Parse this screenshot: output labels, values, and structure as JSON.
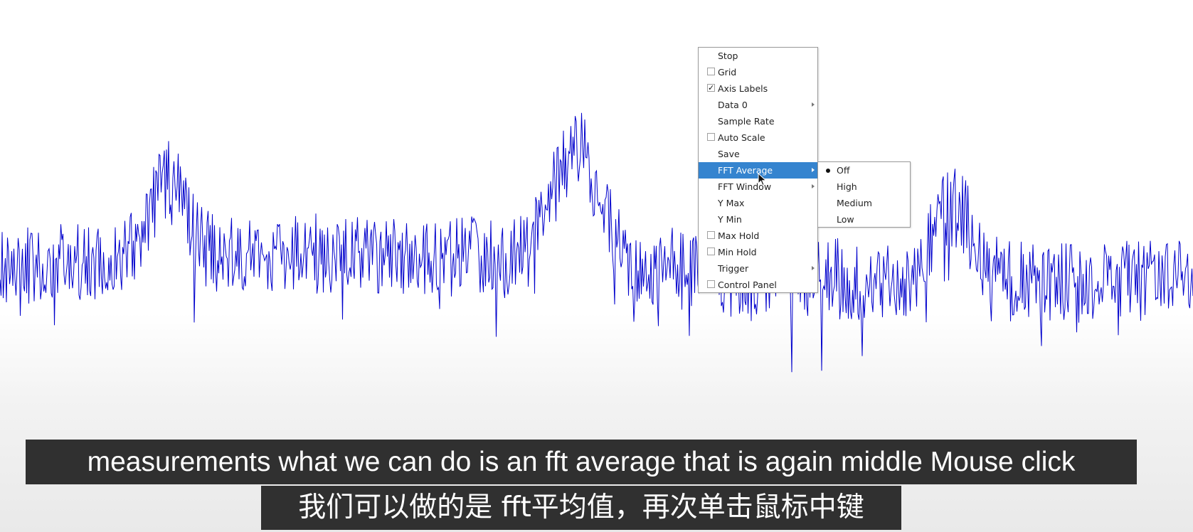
{
  "plot": {
    "trace_color": "#0000cc"
  },
  "context_menu": {
    "items": [
      {
        "label": "Stop",
        "kind": "plain"
      },
      {
        "label": "Grid",
        "kind": "checkbox",
        "checked": false
      },
      {
        "label": "Axis Labels",
        "kind": "checkbox",
        "checked": true
      },
      {
        "label": "Data 0",
        "kind": "submenu"
      },
      {
        "label": "Sample Rate",
        "kind": "plain"
      },
      {
        "label": "Auto Scale",
        "kind": "checkbox",
        "checked": false
      },
      {
        "label": "Save",
        "kind": "plain"
      },
      {
        "label": "FFT Average",
        "kind": "submenu",
        "highlighted": true
      },
      {
        "label": "FFT Window",
        "kind": "submenu"
      },
      {
        "label": "Y Max",
        "kind": "plain"
      },
      {
        "label": "Y Min",
        "kind": "plain"
      },
      {
        "label": "Max Hold",
        "kind": "checkbox",
        "checked": false
      },
      {
        "label": "Min Hold",
        "kind": "checkbox",
        "checked": false
      },
      {
        "label": "Trigger",
        "kind": "submenu"
      },
      {
        "label": "Control Panel",
        "kind": "checkbox",
        "checked": false
      }
    ],
    "highlight_color": "#3584cf"
  },
  "fft_average_submenu": {
    "items": [
      {
        "label": "Off",
        "selected": true
      },
      {
        "label": "High",
        "selected": false
      },
      {
        "label": "Medium",
        "selected": false
      },
      {
        "label": "Low",
        "selected": false
      }
    ]
  },
  "subtitles": {
    "english": "measurements what we can do is an fft average that is again middle Mouse click",
    "chinese": "我们可以做的是 fft平均值，再次单击鼠标中键"
  }
}
